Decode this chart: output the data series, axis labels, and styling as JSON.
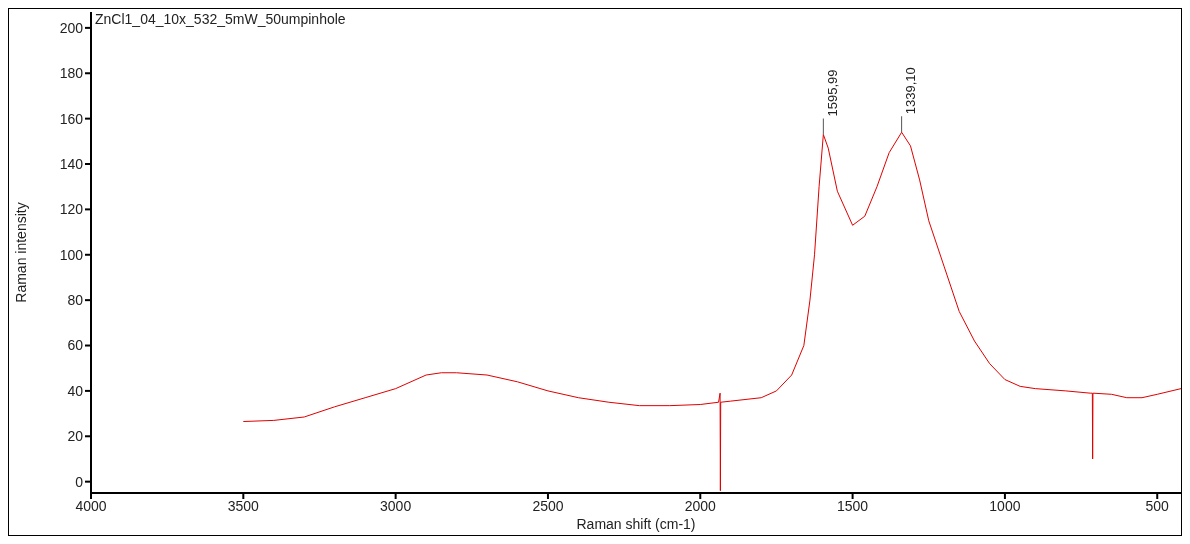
{
  "chart_data": {
    "type": "line",
    "title": "ZnCl1_04_10x_532_5mW_50umpinhole",
    "xlabel": "Raman shift (cm-1)",
    "ylabel": "Raman intensity",
    "xlim": [
      4000,
      422
    ],
    "xticks": [
      4000,
      3500,
      3000,
      2500,
      2000,
      1500,
      1000,
      500
    ],
    "ylim": [
      -5,
      207
    ],
    "yticks": [
      0,
      20,
      40,
      60,
      80,
      100,
      120,
      140,
      160,
      180,
      200
    ],
    "grid": false,
    "marker": "none",
    "line_style": "solid",
    "annotations": [
      {
        "text": "1595,99",
        "x": 1595.99,
        "y": 153
      },
      {
        "text": "1339,10",
        "x": 1339.1,
        "y": 154
      }
    ],
    "series": [
      {
        "color": "#e00000",
        "x": [
          3500,
          3400,
          3300,
          3200,
          3100,
          3000,
          2900,
          2850,
          2800,
          2700,
          2600,
          2500,
          2400,
          2300,
          2200,
          2100,
          2000,
          1940,
          1935,
          1934,
          1933,
          1900,
          1800,
          1750,
          1700,
          1660,
          1640,
          1625,
          1610,
          1596,
          1580,
          1550,
          1500,
          1460,
          1420,
          1380,
          1339,
          1310,
          1280,
          1250,
          1200,
          1150,
          1100,
          1050,
          1000,
          950,
          900,
          800,
          720,
          713,
          712,
          711,
          650,
          600,
          550,
          500,
          422
        ],
        "values": [
          26.5,
          27,
          28.5,
          33,
          37,
          41,
          47,
          48,
          48,
          47,
          44,
          40,
          37,
          35,
          33.5,
          33.5,
          34,
          35,
          39,
          -4,
          35,
          35.5,
          37,
          40,
          47,
          60,
          80,
          100,
          130,
          153,
          147,
          128,
          113,
          117,
          130,
          145,
          154,
          148,
          133,
          115,
          95,
          75,
          62,
          52,
          45,
          42,
          41,
          40,
          39,
          39,
          10,
          39,
          38.5,
          37,
          37,
          38.5,
          41
        ]
      }
    ]
  }
}
